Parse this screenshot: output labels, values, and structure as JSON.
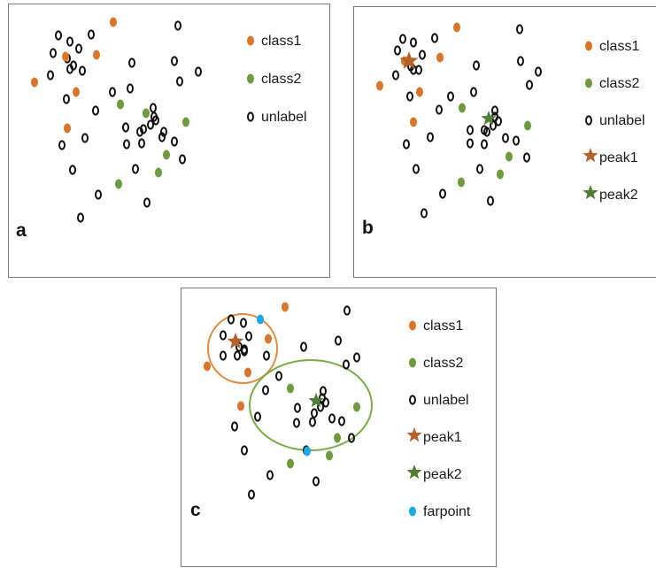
{
  "colors": {
    "class1": "#d9762c",
    "class2": "#6e9c3c",
    "unlabel": "#111111",
    "peak1": "#b4622a",
    "peak2": "#4f7f35",
    "farpoint": "#19aae6",
    "class1_circle": "#e58a3c",
    "class2_circle": "#78ad47"
  },
  "panels": [
    {
      "label": "a",
      "legend": [
        {
          "key": "class1",
          "text": "class1",
          "marker": "dot"
        },
        {
          "key": "class2",
          "text": "class2",
          "marker": "dot"
        },
        {
          "key": "unlabel",
          "text": "unlabel",
          "marker": "ring"
        }
      ]
    },
    {
      "label": "b",
      "legend": [
        {
          "key": "class1",
          "text": "class1",
          "marker": "dot"
        },
        {
          "key": "class2",
          "text": "class2",
          "marker": "dot"
        },
        {
          "key": "unlabel",
          "text": "unlabel",
          "marker": "ring"
        },
        {
          "key": "peak1",
          "text": "peak1",
          "marker": "star"
        },
        {
          "key": "peak2",
          "text": "peak2",
          "marker": "star"
        }
      ]
    },
    {
      "label": "c",
      "legend": [
        {
          "key": "class1",
          "text": "class1",
          "marker": "dot"
        },
        {
          "key": "class2",
          "text": "class2",
          "marker": "dot"
        },
        {
          "key": "unlabel",
          "text": "unlabel",
          "marker": "ring"
        },
        {
          "key": "peak1",
          "text": "peak1",
          "marker": "star"
        },
        {
          "key": "peak2",
          "text": "peak2",
          "marker": "star"
        },
        {
          "key": "farpoint",
          "text": "farpoint",
          "marker": "dot"
        }
      ]
    }
  ]
}
